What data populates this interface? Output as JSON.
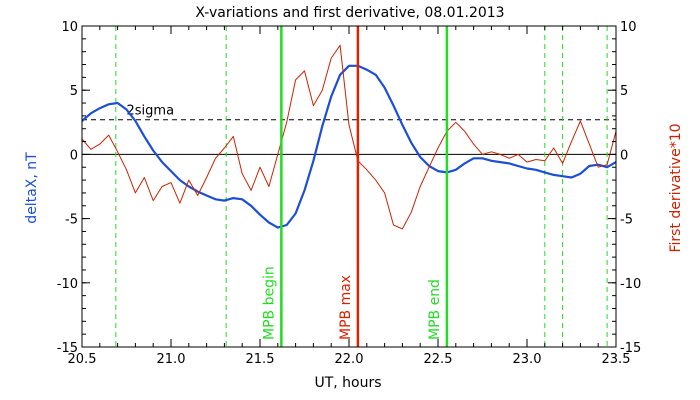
{
  "chart_data": {
    "type": "line",
    "title": "X-variations and first derivative, 08.01.2013",
    "xlabel": "UT, hours",
    "ylabel_left": "deltaX, nT",
    "ylabel_right": "First derivative*10",
    "xlim": [
      20.5,
      23.5
    ],
    "ylim": [
      -15,
      10
    ],
    "x_ticks": [
      "20.5",
      "21.0",
      "21.5",
      "22.0",
      "22.5",
      "23.0",
      "23.5"
    ],
    "y_ticks": [
      "10",
      "5",
      "0",
      "-5",
      "-10",
      "-15"
    ],
    "threshold": {
      "label": "2sigma",
      "y": 2.7
    },
    "colors": {
      "deltaX": "#1a4fd6",
      "derivative": "#cc2200",
      "green": "#22dd22",
      "red": "#dd2200"
    },
    "dashed_green_x": [
      20.69,
      21.31,
      23.1,
      23.2,
      23.45
    ],
    "markers": [
      {
        "label": "MPB begin",
        "x": 21.62,
        "color": "#22dd22"
      },
      {
        "label": "MPB max",
        "x": 22.05,
        "color": "#dd2200"
      },
      {
        "label": "MPB end",
        "x": 22.55,
        "color": "#22dd22"
      }
    ],
    "series": [
      {
        "key": "deltaX",
        "x": [
          20.5,
          20.55,
          20.6,
          20.65,
          20.7,
          20.75,
          20.8,
          20.85,
          20.9,
          20.95,
          21.0,
          21.05,
          21.1,
          21.15,
          21.2,
          21.25,
          21.3,
          21.35,
          21.4,
          21.45,
          21.5,
          21.55,
          21.6,
          21.65,
          21.7,
          21.75,
          21.8,
          21.85,
          21.9,
          21.95,
          22.0,
          22.05,
          22.1,
          22.15,
          22.2,
          22.25,
          22.3,
          22.35,
          22.4,
          22.45,
          22.5,
          22.55,
          22.6,
          22.65,
          22.7,
          22.75,
          22.8,
          22.85,
          22.9,
          22.95,
          23.0,
          23.05,
          23.1,
          23.15,
          23.2,
          23.25,
          23.3,
          23.35,
          23.4,
          23.45,
          23.5
        ],
        "y": [
          2.6,
          3.2,
          3.6,
          3.9,
          4.0,
          3.5,
          2.6,
          1.4,
          0.3,
          -0.6,
          -1.3,
          -2.0,
          -2.5,
          -2.9,
          -3.2,
          -3.5,
          -3.6,
          -3.4,
          -3.5,
          -4.0,
          -4.7,
          -5.3,
          -5.7,
          -5.5,
          -4.6,
          -2.8,
          -0.5,
          2.2,
          4.5,
          6.2,
          6.9,
          6.9,
          6.6,
          6.2,
          5.2,
          3.8,
          2.3,
          0.9,
          -0.2,
          -0.9,
          -1.3,
          -1.4,
          -1.2,
          -0.7,
          -0.3,
          -0.3,
          -0.5,
          -0.6,
          -0.7,
          -0.9,
          -1.1,
          -1.2,
          -1.4,
          -1.6,
          -1.7,
          -1.8,
          -1.5,
          -0.9,
          -0.8,
          -1.0,
          -0.6
        ]
      },
      {
        "key": "derivative",
        "x": [
          20.5,
          20.55,
          20.6,
          20.65,
          20.7,
          20.75,
          20.8,
          20.85,
          20.9,
          20.95,
          21.0,
          21.05,
          21.1,
          21.15,
          21.2,
          21.25,
          21.3,
          21.35,
          21.4,
          21.45,
          21.5,
          21.55,
          21.6,
          21.65,
          21.7,
          21.75,
          21.8,
          21.85,
          21.9,
          21.95,
          22.0,
          22.05,
          22.1,
          22.15,
          22.2,
          22.25,
          22.3,
          22.35,
          22.4,
          22.45,
          22.5,
          22.55,
          22.6,
          22.65,
          22.7,
          22.75,
          22.8,
          22.85,
          22.9,
          22.95,
          23.0,
          23.05,
          23.1,
          23.15,
          23.2,
          23.25,
          23.3,
          23.35,
          23.4,
          23.45,
          23.5
        ],
        "y": [
          1.2,
          0.4,
          0.8,
          1.5,
          0.2,
          -1.2,
          -3.0,
          -1.8,
          -3.6,
          -2.5,
          -2.2,
          -3.8,
          -2.0,
          -3.2,
          -1.8,
          -0.3,
          0.5,
          1.4,
          -1.5,
          -2.8,
          -1.0,
          -2.5,
          0.0,
          2.5,
          5.8,
          6.5,
          3.8,
          5.0,
          7.5,
          8.5,
          2.3,
          -0.5,
          -1.2,
          -2.0,
          -3.0,
          -5.5,
          -5.8,
          -4.5,
          -2.5,
          -1.0,
          0.5,
          1.8,
          2.5,
          1.8,
          0.8,
          0.0,
          0.2,
          0.0,
          -0.3,
          0.0,
          -0.6,
          -0.4,
          -0.5,
          0.5,
          -0.7,
          1.0,
          2.6,
          0.8,
          -1.0,
          -0.8,
          1.8
        ]
      }
    ]
  }
}
